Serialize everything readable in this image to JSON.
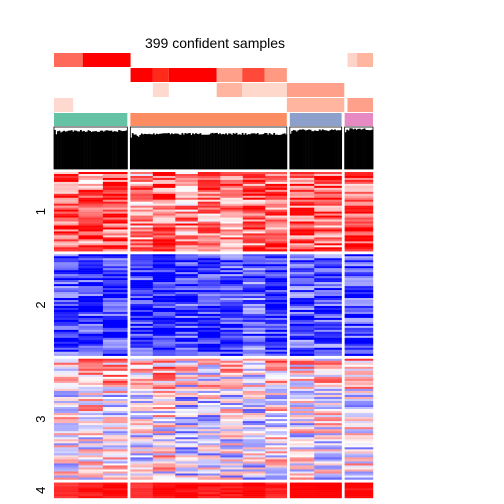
{
  "chart_data": {
    "type": "heatmap",
    "title": "399 confident samples",
    "row_cluster_labels": [
      "1",
      "2",
      "3",
      "4"
    ],
    "row_cluster_heights": [
      8.2,
      10.5,
      12.5,
      1.6
    ],
    "sample_groups": [
      {
        "color": "#66C2A5",
        "width": 7.5
      },
      {
        "color": "#FC8D62",
        "width": 16.0
      },
      {
        "color": "#8DA0CB",
        "width": 5.3
      },
      {
        "color": "#E78AC3",
        "width": 2.9
      }
    ],
    "group_subblocks": [
      [
        2.5,
        2.5,
        2.5
      ],
      [
        2.3,
        2.3,
        2.3,
        2.3,
        2.3,
        2.3,
        2.2
      ],
      [
        2.5,
        2.8
      ],
      [
        2.9
      ]
    ],
    "annotation_tracks": [
      {
        "segments": [
          [
            0.0,
            0.09,
            "#FF6A5A"
          ],
          [
            0.09,
            0.24,
            "#FF0000"
          ],
          [
            0.92,
            0.95,
            "#FFD4C8"
          ],
          [
            0.95,
            1.0,
            "#FFB59F"
          ]
        ]
      },
      {
        "segments": [
          [
            0.24,
            0.31,
            "#FF0000"
          ],
          [
            0.31,
            0.36,
            "#FF2A1A"
          ],
          [
            0.36,
            0.51,
            "#FF0000"
          ],
          [
            0.51,
            0.59,
            "#FFA08A"
          ],
          [
            0.59,
            0.66,
            "#FF4A3A"
          ],
          [
            0.66,
            0.73,
            "#FF9A82"
          ]
        ]
      },
      {
        "segments": [
          [
            0.31,
            0.36,
            "#FFD8D0"
          ],
          [
            0.51,
            0.59,
            "#FFB5A0"
          ],
          [
            0.59,
            0.73,
            "#FFD8CC"
          ],
          [
            0.73,
            0.91,
            "#FFA08A"
          ]
        ]
      },
      {
        "segments": [
          [
            0.0,
            0.06,
            "#FFD8D0"
          ],
          [
            0.73,
            0.91,
            "#FFB59F"
          ],
          [
            0.92,
            1.0,
            "#FFA08A"
          ]
        ]
      }
    ],
    "silhouette_mean": [
      0.93,
      0.86,
      0.95,
      0.97
    ],
    "cluster_colors": {
      "1": {
        "base": 0.55,
        "spread": 0.55
      },
      "2": {
        "base": -0.75,
        "spread": 0.45
      },
      "3": {
        "base": -0.05,
        "spread": 0.6
      },
      "4": {
        "base": 0.95,
        "spread": 0.1
      }
    },
    "color_scale": {
      "low": "#0000FF",
      "mid": "#FFFFFF",
      "high": "#FF0000"
    }
  }
}
